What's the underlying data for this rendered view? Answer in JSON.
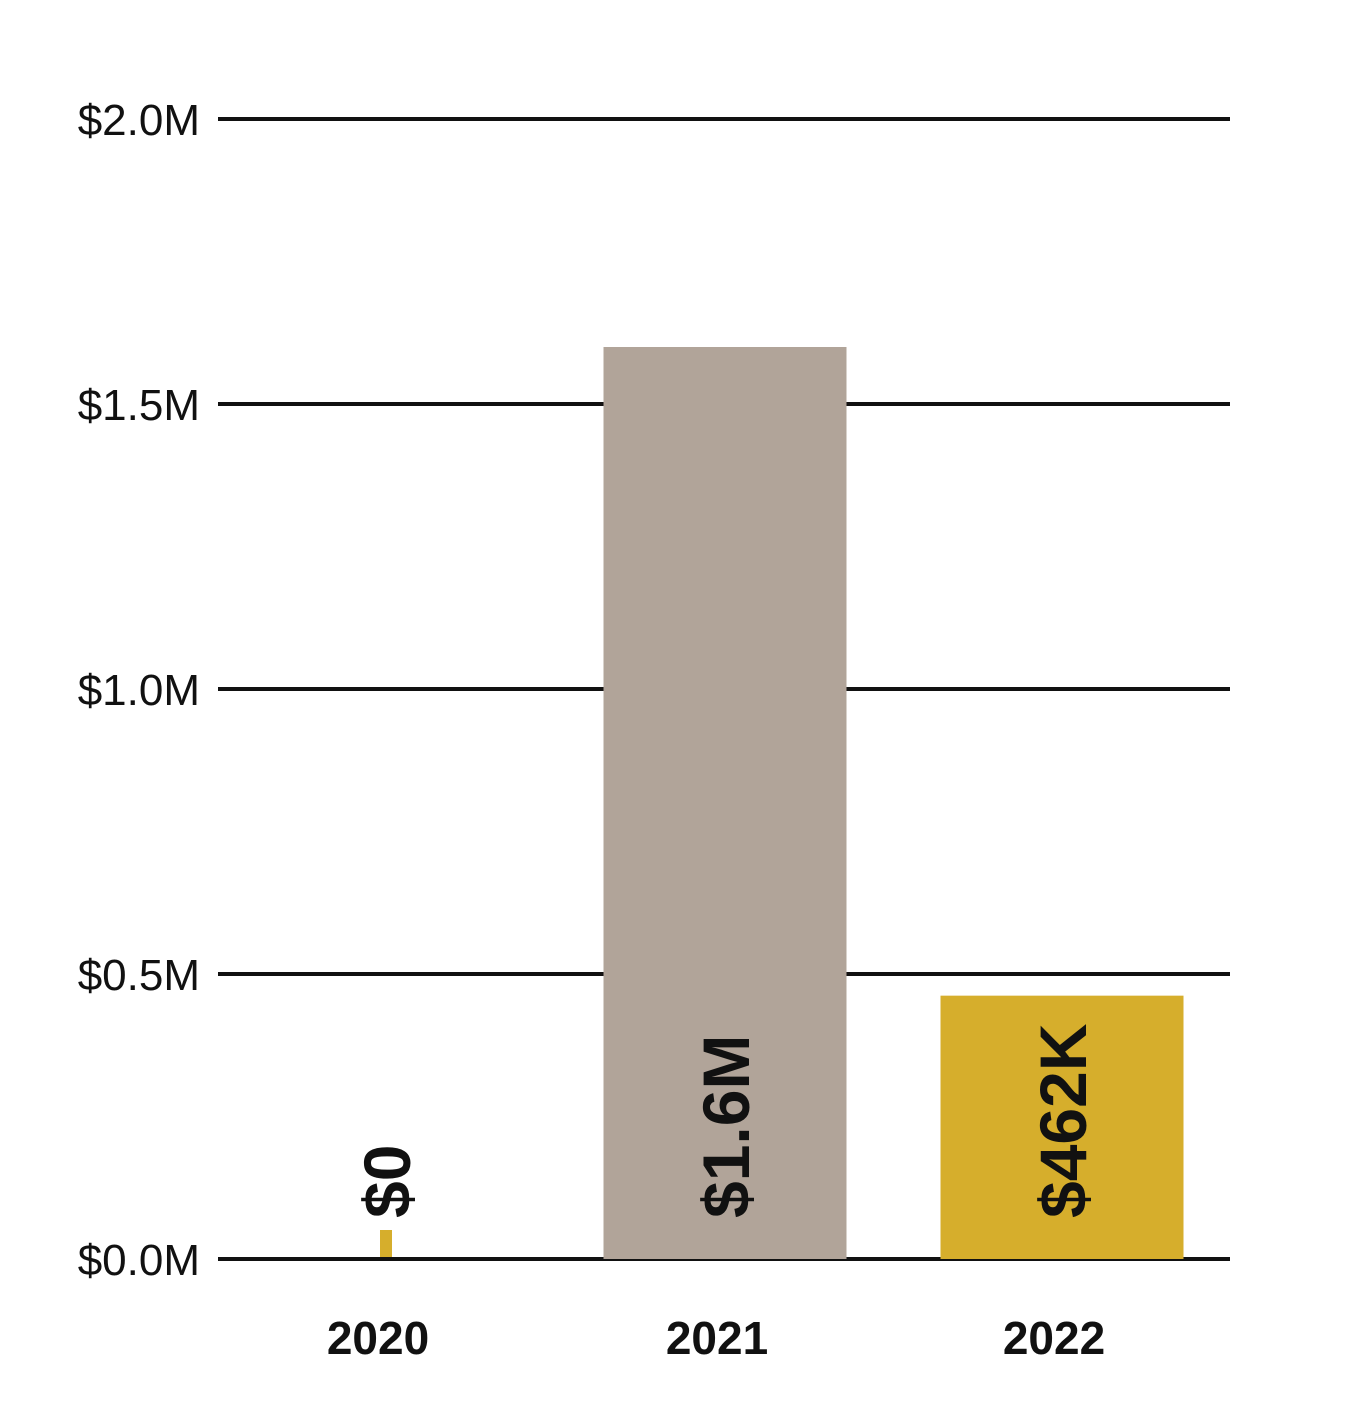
{
  "chart_data": {
    "type": "bar",
    "title": "",
    "xlabel": "",
    "ylabel": "",
    "categories": [
      "2020",
      "2021",
      "2022"
    ],
    "values": [
      0,
      1600000,
      462000
    ],
    "data_labels": [
      "$0",
      "$1.6M",
      "$462K"
    ],
    "bar_colors": [
      "#D6AE2C",
      "#B1A499",
      "#D6AE2C"
    ],
    "ylim": [
      0,
      2000000
    ],
    "yticks": [
      0,
      500000,
      1000000,
      1500000,
      2000000
    ],
    "ytick_labels": [
      "$0.0M",
      "$0.5M",
      "$1.0M",
      "$1.5M",
      "$2.0M"
    ],
    "grid": true,
    "legend": "none",
    "label_orientation": "vertical"
  }
}
